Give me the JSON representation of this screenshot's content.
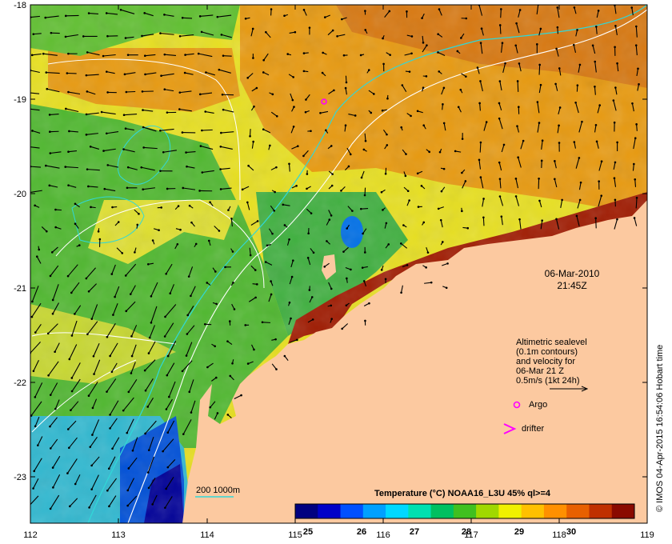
{
  "map": {
    "lon_ticks": [
      "112",
      "113",
      "114",
      "115",
      "116",
      "117",
      "118",
      "119"
    ],
    "lat_ticks": [
      "-18",
      "-19",
      "-20",
      "-21",
      "-22",
      "-23"
    ],
    "date": "06-Mar-2010",
    "time": "21:45Z",
    "legend": {
      "lines": [
        "Altimetric sealevel",
        "(0.1m contours)",
        "and velocity for",
        "06-Mar 21 Z",
        "0.5m/s (1kt 24h)"
      ],
      "argo_label": "Argo",
      "drifter_label": "drifter"
    },
    "depth_legend": "200  1000m",
    "colorbar": {
      "title": "Temperature (°C) NOAA16_L3U 45% ql>=4",
      "ticks": [
        "25",
        "26",
        "27",
        "28",
        "29",
        "30"
      ],
      "colors": [
        "#000080",
        "#0000c8",
        "#0050ff",
        "#00a0ff",
        "#00d8ff",
        "#00e0b0",
        "#00c060",
        "#40c020",
        "#a0d800",
        "#f0f000",
        "#ffc000",
        "#ff9000",
        "#e86000",
        "#c03000",
        "#8a0a00"
      ]
    },
    "credit": "© IMOS 04-Apr-2015 16:54:06 Hobart time",
    "colors": {
      "land": "#fcc9a0",
      "contour_shelf": "#30d8d8",
      "contour_slope": "#ffffff",
      "argo": "#ff00ff"
    }
  }
}
